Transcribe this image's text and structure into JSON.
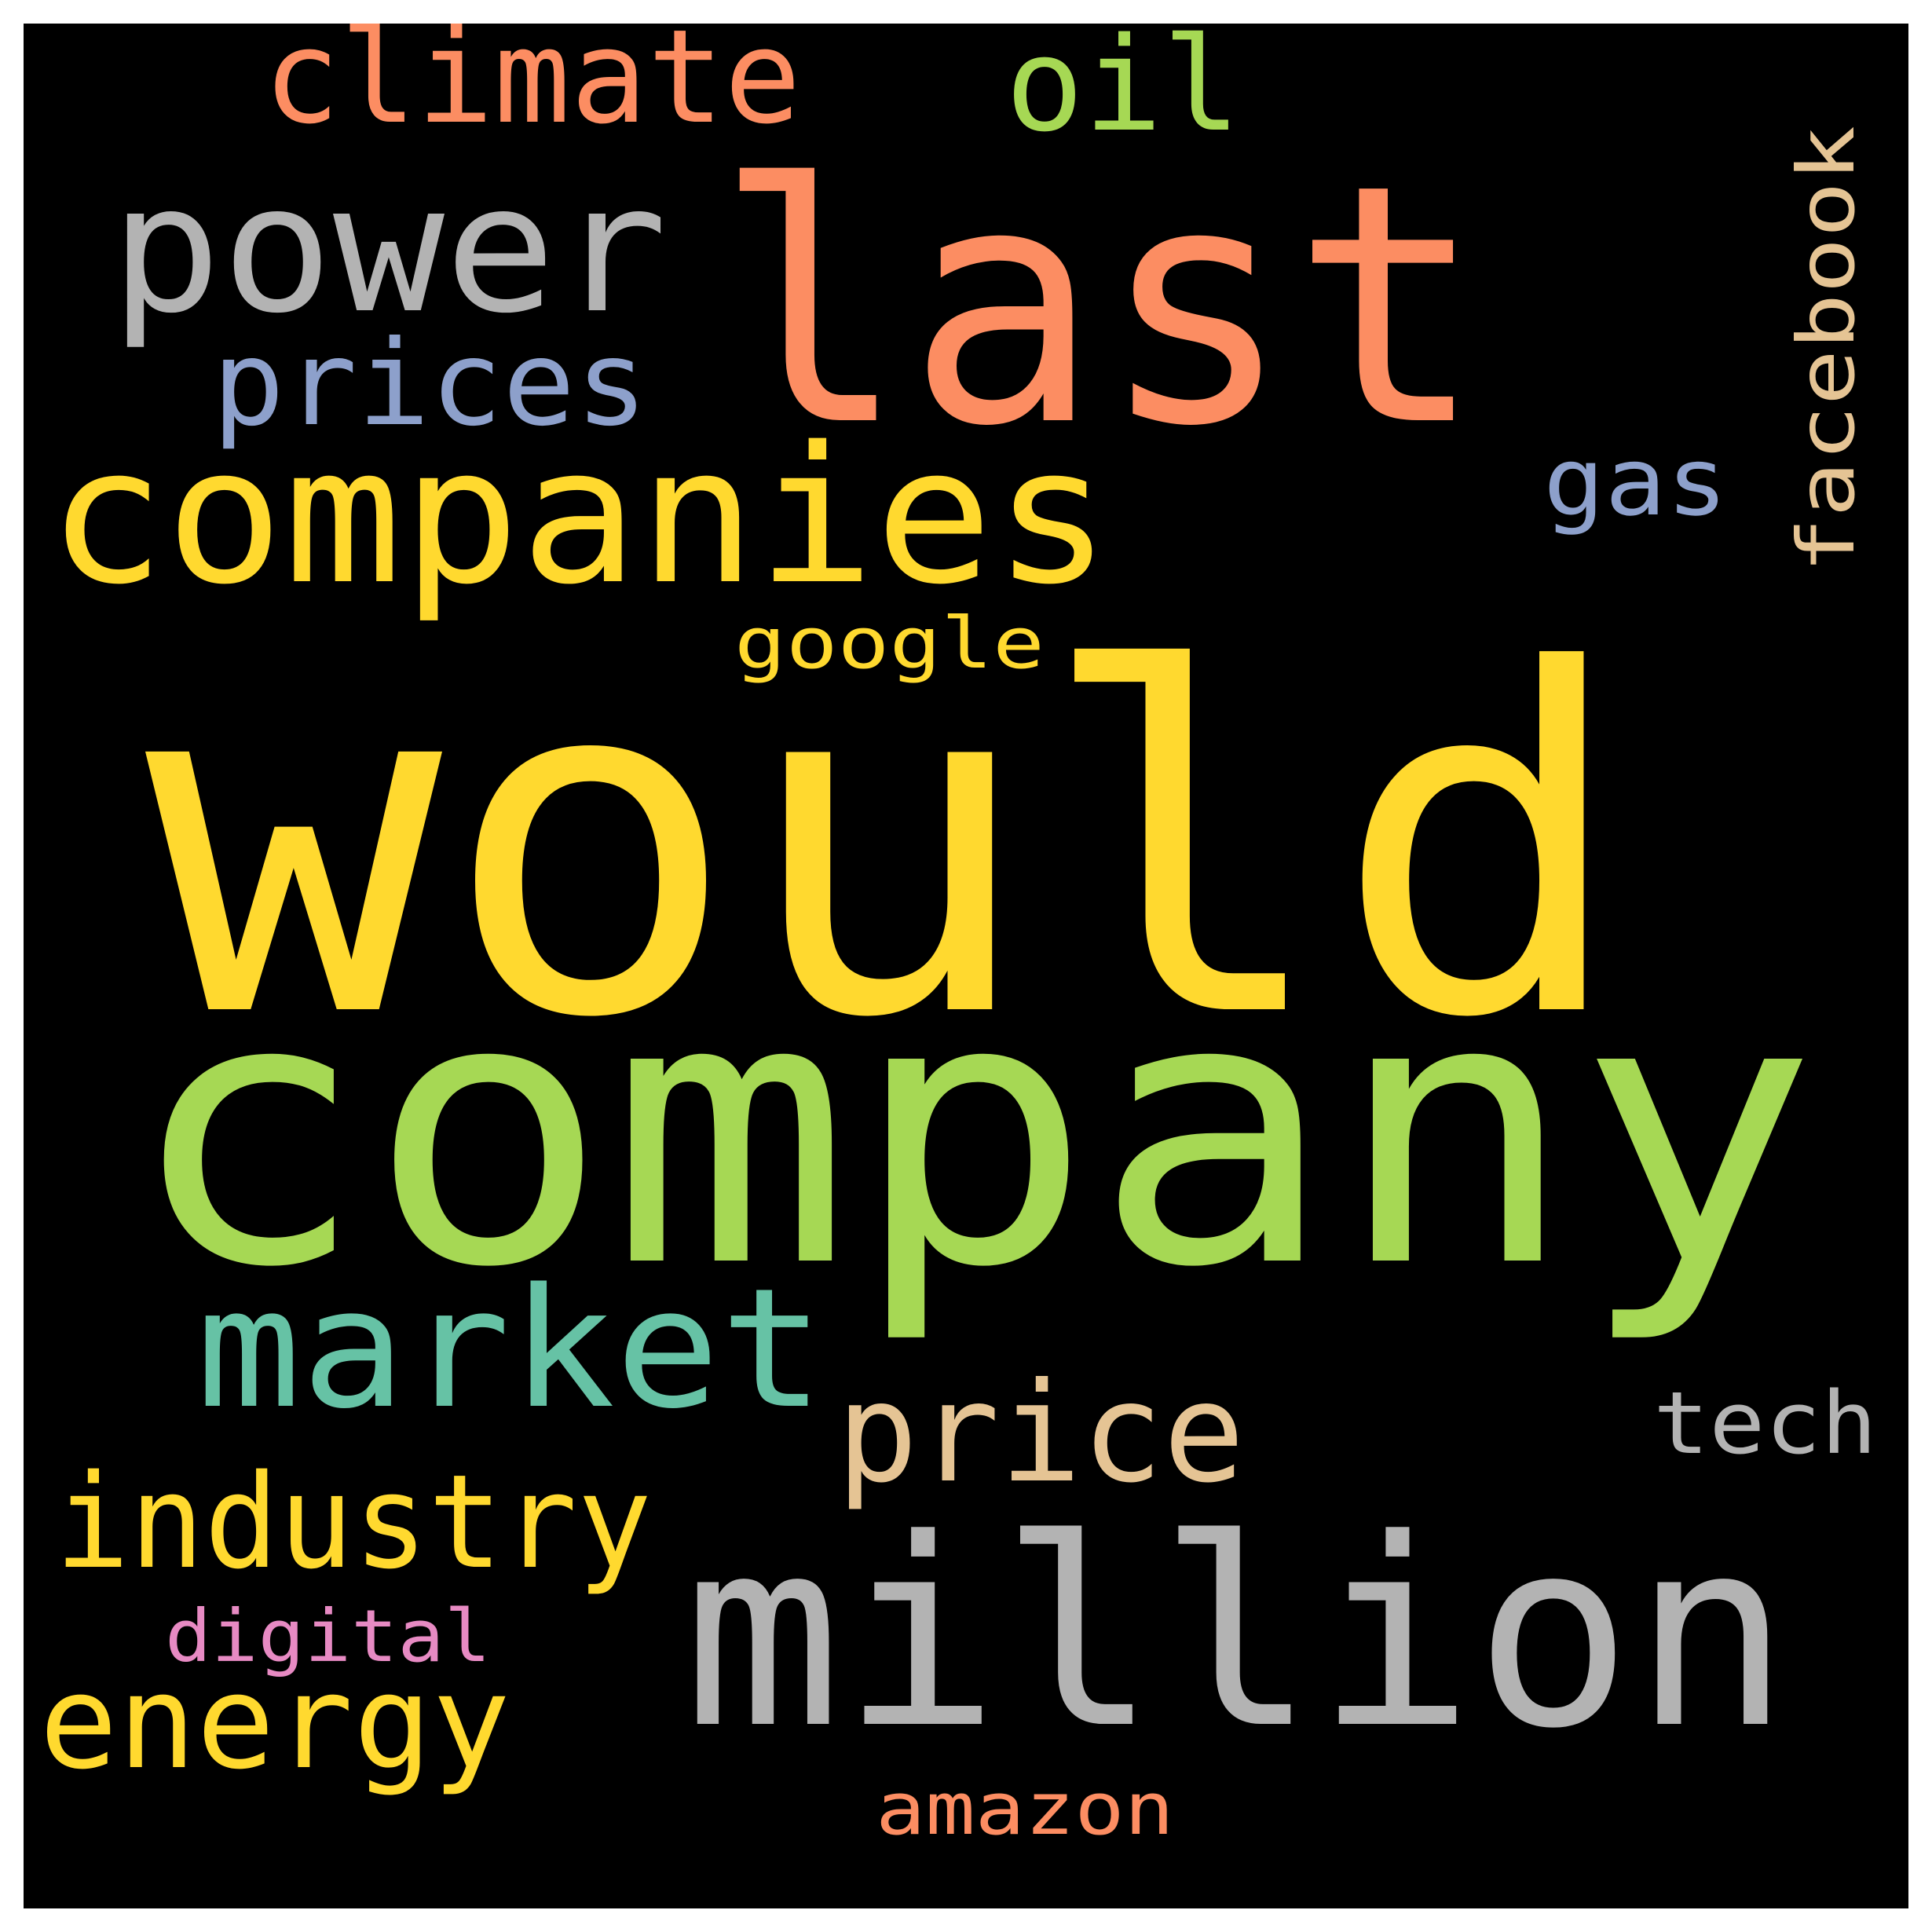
{
  "cloud": {
    "background": "#000000",
    "words": [
      {
        "id": "would",
        "text": "would",
        "color": "#FFD92F"
      },
      {
        "id": "company",
        "text": "company",
        "color": "#A6D854"
      },
      {
        "id": "last",
        "text": "last",
        "color": "#FC8D62"
      },
      {
        "id": "million",
        "text": "million",
        "color": "#B3B3B3"
      },
      {
        "id": "companies",
        "text": "companies",
        "color": "#FFD92F"
      },
      {
        "id": "power",
        "text": "power",
        "color": "#B3B3B3"
      },
      {
        "id": "market",
        "text": "market",
        "color": "#66C2A5"
      },
      {
        "id": "climate",
        "text": "climate",
        "color": "#FC8D62"
      },
      {
        "id": "oil",
        "text": "oil",
        "color": "#A6D854"
      },
      {
        "id": "prices",
        "text": "prices",
        "color": "#8DA0CB"
      },
      {
        "id": "price",
        "text": "price",
        "color": "#E5C494"
      },
      {
        "id": "industry",
        "text": "industry",
        "color": "#FFD92F"
      },
      {
        "id": "energy",
        "text": "energy",
        "color": "#FFD92F"
      },
      {
        "id": "facebook",
        "text": "facebook",
        "color": "#E5C494"
      },
      {
        "id": "gas",
        "text": "gas",
        "color": "#8DA0CB"
      },
      {
        "id": "tech",
        "text": "tech",
        "color": "#B3B3B3"
      },
      {
        "id": "google",
        "text": "google",
        "color": "#FFD92F"
      },
      {
        "id": "digital",
        "text": "digital",
        "color": "#E78AC3"
      },
      {
        "id": "amazon",
        "text": "amazon",
        "color": "#FC8D62"
      }
    ]
  }
}
